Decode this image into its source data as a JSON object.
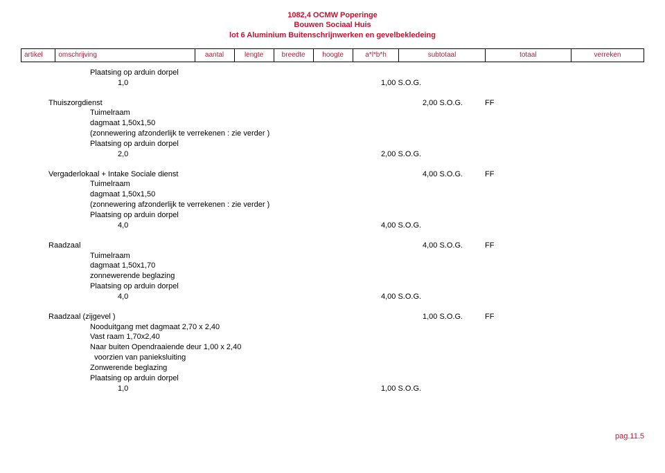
{
  "header": {
    "line1": "1082,4 OCMW Poperinge",
    "line2": "Bouwen Sociaal Huis",
    "line3": "lot 6 Aluminium Buitenschrijnwerken en gevelbekledeing"
  },
  "columns": {
    "artikel": "artikel",
    "omschrijving": "omschrijving",
    "aantal": "aantal",
    "lengte": "lengte",
    "breedte": "breedte",
    "hoogte": "hoogte",
    "albh": "a*l*b*h",
    "subtotaal": "subtotaal",
    "totaal": "totaal",
    "verreken": "verreken"
  },
  "topItem": {
    "desc": "Plaatsing op arduin dorpel",
    "qty": "1,0",
    "sub": "1,00 S.O.G."
  },
  "sections": [
    {
      "title": "Thuiszorgdienst",
      "totaal": "2,00 S.O.G.",
      "ff": "FF",
      "lines": [
        "Tuimelraam",
        "dagmaat 1,50x1,50",
        "(zonnewering afzonderlijk te verrekenen : zie verder )",
        "Plaatsing op arduin dorpel"
      ],
      "qty": "2,0",
      "sub": "2,00 S.O.G."
    },
    {
      "title": "Vergaderlokaal + Intake Sociale dienst",
      "totaal": "4,00 S.O.G.",
      "ff": "FF",
      "lines": [
        "Tuimelraam",
        "dagmaat 1,50x1,50",
        "(zonnewering afzonderlijk te verrekenen : zie verder )",
        "Plaatsing op arduin dorpel"
      ],
      "qty": "4,0",
      "sub": "4,00 S.O.G."
    },
    {
      "title": "Raadzaal",
      "totaal": "4,00 S.O.G.",
      "ff": "FF",
      "lines": [
        "Tuimelraam",
        "dagmaat 1,50x1,70",
        "zonnewerende beglazing",
        "Plaatsing op arduin dorpel"
      ],
      "qty": "4,0",
      "sub": "4,00 S.O.G."
    },
    {
      "title": "Raadzaal (zijgevel )",
      "totaal": "1,00 S.O.G.",
      "ff": "FF",
      "lines": [
        "Nooduitgang met dagmaat 2,70 x 2,40",
        "Vast raam 1,70x2,40",
        "Naar buiten Opendraaiende deur 1,00 x 2,40",
        "  voorzien van panieksluiting",
        "Zonwerende beglazing",
        "Plaatsing op arduin dorpel"
      ],
      "qty": "1,0",
      "sub": "1,00 S.O.G."
    }
  ],
  "footer": "pag.11.5"
}
